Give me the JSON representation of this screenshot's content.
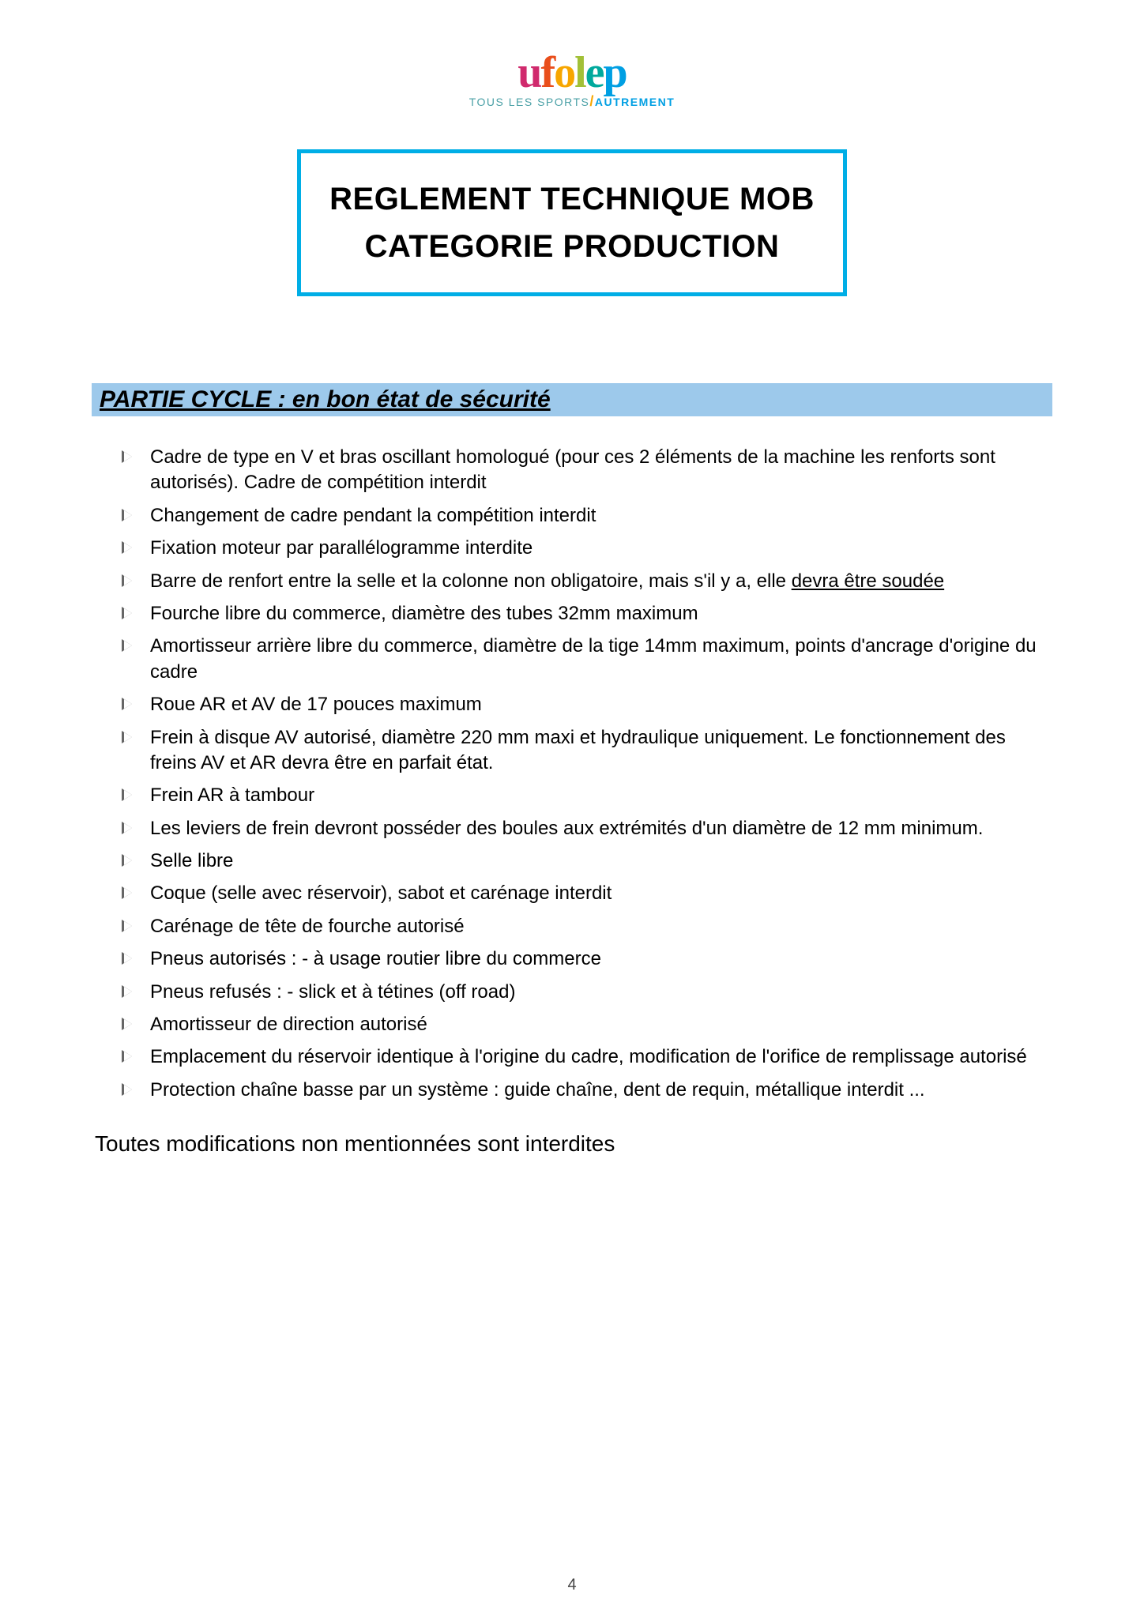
{
  "logo": {
    "letters": {
      "u": "u",
      "f": "f",
      "o": "o",
      "l": "l",
      "e": "e",
      "p": "p"
    },
    "tagline_pre": "TOUS LES SPORTS",
    "tagline_slash": "/",
    "tagline_post": "AUTREMENT"
  },
  "title": {
    "line1": "REGLEMENT TECHNIQUE MOB",
    "line2": "CATEGORIE PRODUCTION"
  },
  "section": {
    "heading": "PARTIE CYCLE : en bon état de sécurité",
    "items": [
      {
        "pre": "Cadre de type en V et bras oscillant homologué (pour ces 2 éléments de la machine les renforts sont autorisés). Cadre de compétition interdit"
      },
      {
        "pre": "Changement de cadre pendant la compétition interdit"
      },
      {
        "pre": "Fixation moteur par parallélogramme interdite"
      },
      {
        "pre": "Barre de renfort entre la selle et la colonne non obligatoire, mais s'il y a, elle ",
        "u": "devra être soudée"
      },
      {
        "pre": "Fourche libre du commerce, diamètre des tubes 32mm maximum"
      },
      {
        "pre": "Amortisseur arrière libre du commerce, diamètre de la tige 14mm maximum, points d'ancrage d'origine du cadre"
      },
      {
        "pre": "Roue AR et AV de 17 pouces maximum"
      },
      {
        "pre": "Frein à disque AV autorisé, diamètre 220 mm maxi et hydraulique uniquement. Le fonctionnement des freins AV et AR devra être en parfait état."
      },
      {
        "pre": "Frein AR à tambour"
      },
      {
        "pre": "Les leviers de frein devront posséder des boules aux extrémités d'un diamètre de 12 mm minimum."
      },
      {
        "pre": "Selle libre"
      },
      {
        "pre": "Coque (selle avec réservoir), sabot et carénage interdit"
      },
      {
        "pre": "Carénage de tête de fourche autorisé"
      },
      {
        "pre": "Pneus autorisés :  - à usage routier libre du commerce"
      },
      {
        "pre": "Pneus refusés : - slick et à tétines (off road)"
      },
      {
        "pre": "Amortisseur de direction autorisé"
      },
      {
        "pre": "Emplacement du réservoir identique à l'origine du cadre, modification de l'orifice de remplissage autorisé"
      },
      {
        "pre": "Protection chaîne basse par un système : guide chaîne, dent de requin, métallique interdit ..."
      }
    ]
  },
  "closing": "Toutes modifications non mentionnées sont interdites",
  "page_number": "4",
  "colors": {
    "title_border": "#00aee6",
    "heading_bg": "#9dc9eb",
    "text": "#000000",
    "background": "#ffffff"
  }
}
